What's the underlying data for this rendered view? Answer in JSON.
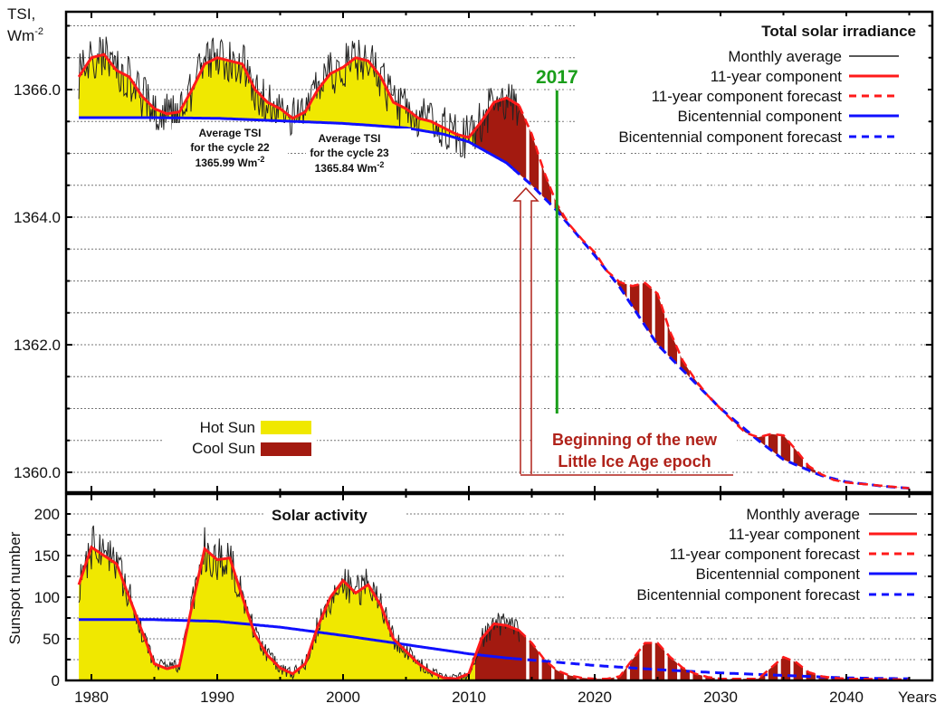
{
  "chart_data": [
    {
      "type": "line",
      "title": "Total solar irradiance",
      "ylabel_line1": "TSI,",
      "ylabel_line2": "Wm",
      "ylabel_sup": "-2",
      "xlabel": "Years",
      "xlim": [
        1978,
        2046
      ],
      "ylim": [
        1359.5,
        1367.2
      ],
      "yticks": [
        "1360.0",
        "1362.0",
        "1364.0",
        "1366.0"
      ],
      "ytick_values": [
        1360,
        1362,
        1364,
        1366
      ],
      "grid": true,
      "legend_position": "top-right",
      "legend": [
        "Monthly average",
        "11-year component",
        "11-year component forecast",
        "Bicentennial component",
        "Bicentennial component forecast"
      ],
      "forecast_start": 2014,
      "bicentennial_forecast_start": 2013.5,
      "cool_start": 2010.5,
      "monthly_noise_amplitude": 0.7,
      "eleven_year": {
        "x": [
          1979,
          1980,
          1981,
          1982,
          1983,
          1984,
          1985,
          1986,
          1987,
          1988,
          1989,
          1990,
          1991,
          1992,
          1993,
          1994,
          1995,
          1996,
          1997,
          1998,
          1999,
          2000,
          2001,
          2002,
          2003,
          2004,
          2005,
          2006,
          2007,
          2008,
          2009,
          2010,
          2011,
          2012,
          2013,
          2014,
          2015,
          2016,
          2017,
          2018,
          2019,
          2020,
          2021,
          2022,
          2023,
          2024,
          2025,
          2026,
          2027,
          2028,
          2029,
          2030,
          2031,
          2032,
          2033,
          2034,
          2035,
          2036,
          2037,
          2038,
          2039,
          2040,
          2045
        ],
        "y": [
          1366.2,
          1366.5,
          1366.55,
          1366.3,
          1366.2,
          1365.9,
          1365.7,
          1365.62,
          1365.65,
          1366.0,
          1366.4,
          1366.5,
          1366.45,
          1366.4,
          1366.0,
          1365.8,
          1365.7,
          1365.55,
          1365.65,
          1366.0,
          1366.25,
          1366.35,
          1366.5,
          1366.45,
          1366.2,
          1365.8,
          1365.7,
          1365.55,
          1365.5,
          1365.4,
          1365.3,
          1365.25,
          1365.5,
          1365.8,
          1365.87,
          1365.75,
          1365.3,
          1364.7,
          1364.2,
          1363.88,
          1363.65,
          1363.45,
          1363.15,
          1362.98,
          1362.92,
          1362.97,
          1362.8,
          1362.2,
          1361.75,
          1361.45,
          1361.2,
          1361.0,
          1360.8,
          1360.62,
          1360.55,
          1360.6,
          1360.58,
          1360.35,
          1360.1,
          1359.97,
          1359.88,
          1359.84,
          1359.75
        ]
      },
      "bicentennial": {
        "x": [
          1979,
          1985,
          1990,
          1995,
          2000,
          2005,
          2008,
          2010,
          2013,
          2015,
          2017,
          2020,
          2022,
          2025,
          2028,
          2030,
          2033,
          2035,
          2038,
          2040,
          2043,
          2045
        ],
        "y": [
          1365.56,
          1365.56,
          1365.55,
          1365.51,
          1365.47,
          1365.4,
          1365.3,
          1365.18,
          1364.85,
          1364.5,
          1364.1,
          1363.4,
          1362.9,
          1362.0,
          1361.4,
          1361.0,
          1360.5,
          1360.2,
          1359.95,
          1359.85,
          1359.78,
          1359.75
        ]
      },
      "annotations": {
        "cycle22": {
          "line1": "Average TSI",
          "line2": "for the cycle 22",
          "value": "1365.99 Wm",
          "sup": "-2"
        },
        "cycle23": {
          "line1": "Average TSI",
          "line2": "for the cycle 23",
          "value": "1365.84 Wm",
          "sup": "-2"
        },
        "marker_year": "2017",
        "marker_year_value": 2017,
        "lia_line1": "Beginning of the new",
        "lia_line2": "Little Ice Age epoch",
        "hot_sun": "Hot Sun",
        "cool_sun": "Cool Sun"
      }
    },
    {
      "type": "line",
      "title": "Solar activity",
      "ylabel": "Sunspot number",
      "xlabel": "Years",
      "xlim": [
        1978,
        2046
      ],
      "ylim": [
        0,
        225
      ],
      "yticks": [
        "0",
        "50",
        "100",
        "150",
        "200"
      ],
      "ytick_values": [
        0,
        50,
        100,
        150,
        200
      ],
      "xticks": [
        "1980",
        "1990",
        "2000",
        "2010",
        "2020",
        "2030",
        "2040"
      ],
      "xtick_values": [
        1980,
        1990,
        2000,
        2010,
        2020,
        2030,
        2040
      ],
      "grid": true,
      "legend_position": "top-right",
      "legend": [
        "Monthly average",
        "11-year component",
        "11-year component forecast",
        "Bicentennial component",
        "Bicentennial component forecast"
      ],
      "forecast_start": 2014,
      "bicentennial_forecast_start": 2013.5,
      "cool_start": 2010.5,
      "monthly_noise_amplitude": 45,
      "eleven_year": {
        "x": [
          1979,
          1980,
          1981,
          1982,
          1983,
          1984,
          1985,
          1986,
          1987,
          1988,
          1989,
          1990,
          1991,
          1992,
          1993,
          1994,
          1995,
          1996,
          1997,
          1998,
          1999,
          2000,
          2001,
          2002,
          2003,
          2004,
          2005,
          2006,
          2007,
          2008,
          2009,
          2010,
          2011,
          2012,
          2013,
          2014,
          2015,
          2016,
          2017,
          2018,
          2019,
          2020,
          2021,
          2022,
          2023,
          2024,
          2025,
          2026,
          2027,
          2028,
          2029,
          2030,
          2033,
          2034,
          2035,
          2036,
          2037,
          2038,
          2039,
          2040,
          2045
        ],
        "y": [
          115,
          160,
          150,
          140,
          100,
          60,
          20,
          14,
          18,
          90,
          158,
          145,
          147,
          100,
          55,
          30,
          15,
          8,
          20,
          65,
          100,
          120,
          105,
          115,
          90,
          50,
          35,
          20,
          10,
          3,
          2,
          8,
          50,
          68,
          66,
          60,
          45,
          25,
          12,
          6,
          3,
          2,
          2,
          5,
          25,
          45,
          45,
          28,
          15,
          8,
          4,
          2,
          2,
          15,
          28,
          22,
          10,
          5,
          3,
          2,
          1
        ]
      },
      "bicentennial": {
        "x": [
          1979,
          1985,
          1990,
          1995,
          2000,
          2005,
          2010,
          2013,
          2020,
          2025,
          2030,
          2035,
          2040,
          2045
        ],
        "y": [
          73,
          73,
          71,
          64,
          54,
          43,
          32,
          27,
          18,
          13,
          9,
          6,
          3,
          2
        ]
      }
    }
  ],
  "colors": {
    "hot": "#f0e800",
    "cool": "#a31a10",
    "eleven": "#ff1a1a",
    "bicentennial": "#1010ff",
    "monthly": "#222222",
    "marker": "#1a9e1a",
    "lia": "#b0221a"
  }
}
